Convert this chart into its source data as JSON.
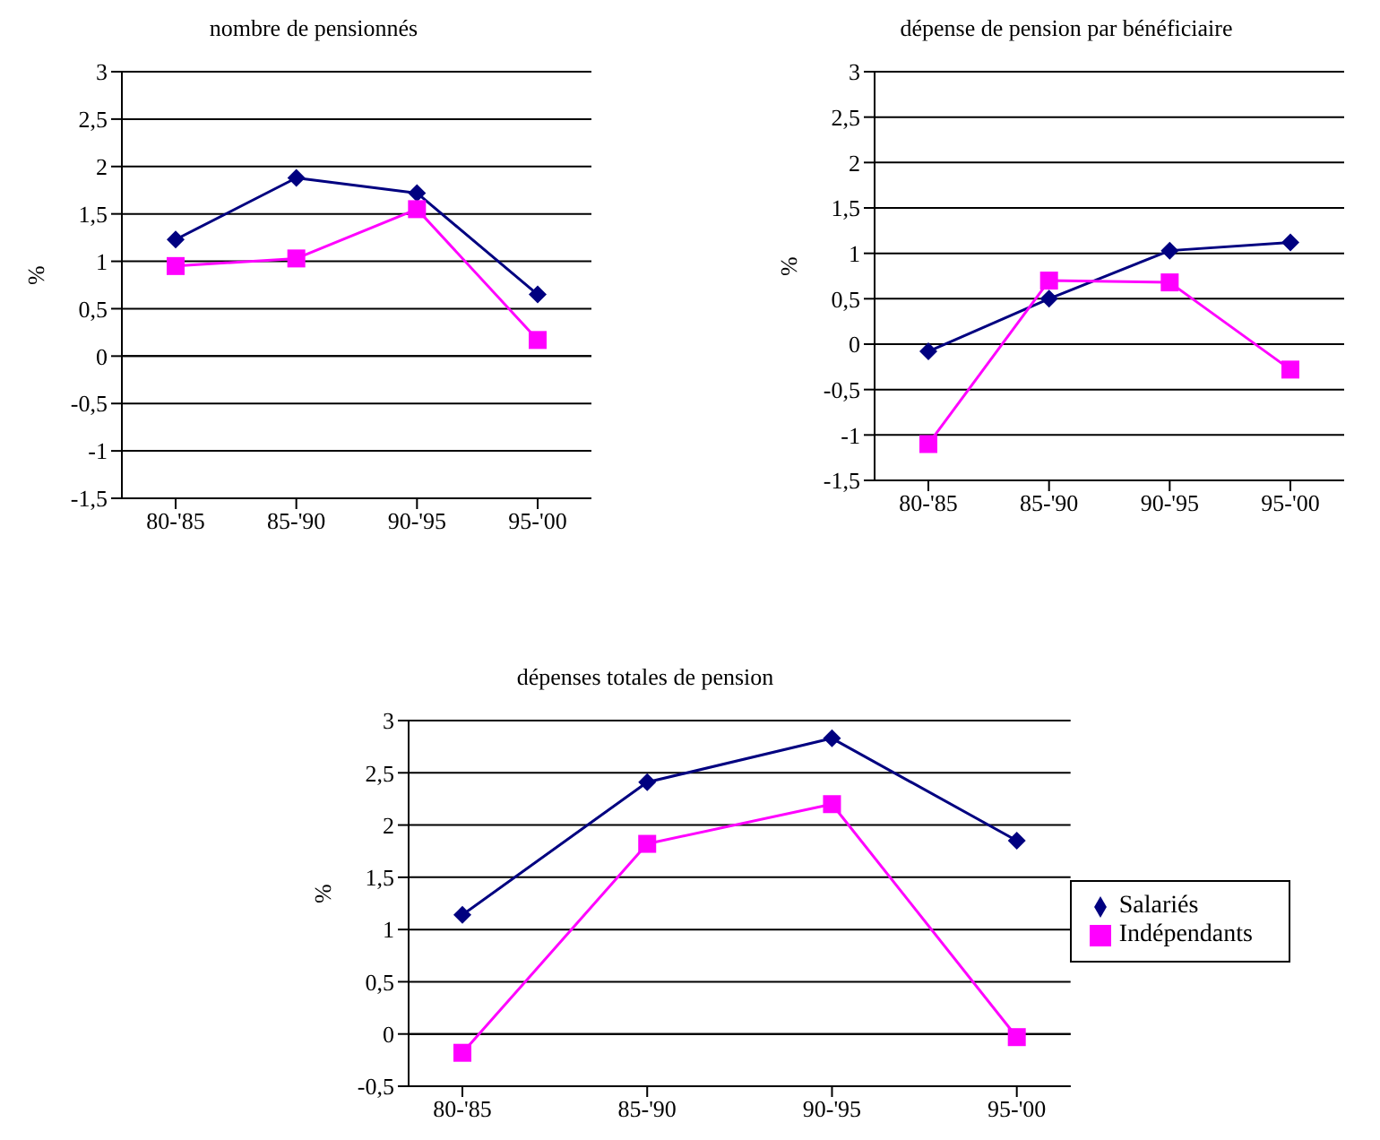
{
  "chart_data": [
    {
      "type": "line",
      "title": "nombre de pensionnés",
      "ylabel": "%",
      "categories": [
        "80-'85",
        "85-'90",
        "90-'95",
        "95-'00"
      ],
      "series": [
        {
          "color": "#000080",
          "marker": "diamond",
          "values": [
            1.23,
            1.88,
            1.72,
            0.65
          ]
        },
        {
          "color": "#ff00ff",
          "marker": "square",
          "values": [
            0.95,
            1.03,
            1.55,
            0.17
          ]
        }
      ],
      "ylim": [
        -1.5,
        3
      ],
      "yticks": [
        {
          "value": -1.5,
          "label": "-1,5"
        },
        -1,
        {
          "value": -0.5,
          "label": "-0,5"
        },
        0,
        {
          "value": 0.5,
          "label": "0,5"
        },
        1,
        {
          "value": 1.5,
          "label": "1,5"
        },
        2,
        {
          "value": 2.5,
          "label": "2,5"
        },
        3
      ],
      "grid": "y",
      "legend": false
    },
    {
      "type": "line",
      "title": "dépense de pension par bénéficiaire",
      "ylabel": "%",
      "categories": [
        "80-'85",
        "85-'90",
        "90-'95",
        "95-'00"
      ],
      "series": [
        {
          "color": "#000080",
          "marker": "diamond",
          "values": [
            -0.08,
            0.5,
            1.03,
            1.12
          ]
        },
        {
          "color": "#ff00ff",
          "marker": "square",
          "values": [
            -1.1,
            0.7,
            0.68,
            -0.28
          ]
        }
      ],
      "ylim": [
        -1.5,
        3
      ],
      "yticks": [
        {
          "value": -1.5,
          "label": "-1,5"
        },
        -1,
        {
          "value": -0.5,
          "label": "-0,5"
        },
        0,
        {
          "value": 0.5,
          "label": "0,5"
        },
        1,
        {
          "value": 1.5,
          "label": "1,5"
        },
        2,
        {
          "value": 2.5,
          "label": "2,5"
        },
        3
      ],
      "grid": "y",
      "legend": false
    },
    {
      "type": "line",
      "title": "dépenses totales de pension",
      "ylabel": "%",
      "categories": [
        "80-'85",
        "85-'90",
        "90-'95",
        "95-'00"
      ],
      "series": [
        {
          "name": "Salariés",
          "color": "#000080",
          "marker": "diamond",
          "values": [
            1.14,
            2.41,
            2.83,
            1.85
          ]
        },
        {
          "name": "Indépendants",
          "color": "#ff00ff",
          "marker": "square",
          "values": [
            -0.18,
            1.82,
            2.2,
            -0.03
          ]
        }
      ],
      "ylim": [
        -0.5,
        3
      ],
      "yticks": [
        {
          "value": -0.5,
          "label": "-0,5"
        },
        0,
        {
          "value": 0.5,
          "label": "0,5"
        },
        1,
        {
          "value": 1.5,
          "label": "1,5"
        },
        2,
        {
          "value": 2.5,
          "label": "2,5"
        },
        3
      ],
      "grid": "y",
      "legend": "right"
    }
  ]
}
